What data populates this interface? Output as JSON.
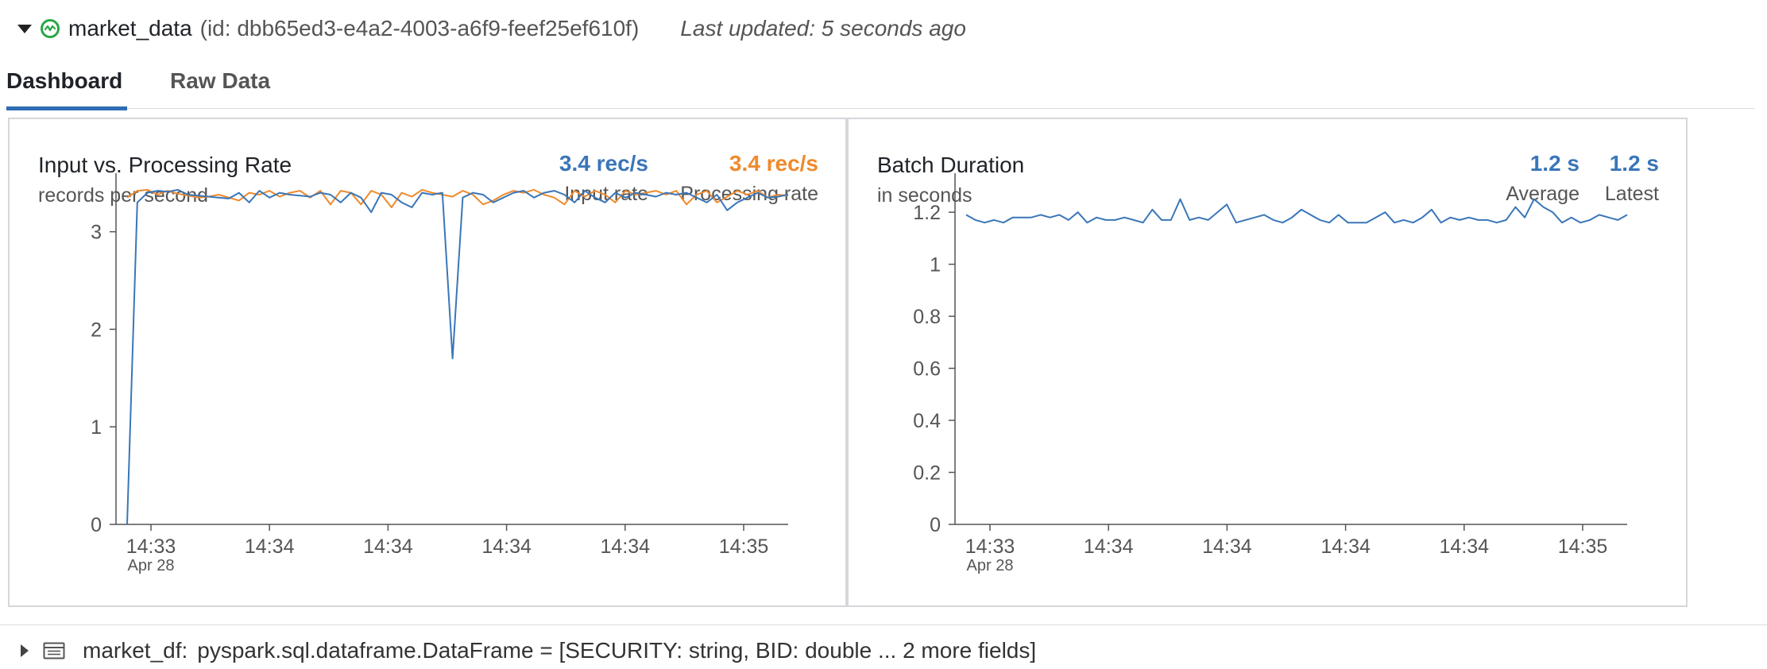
{
  "header": {
    "stream_name": "market_data",
    "stream_id": "(id: dbb65ed3-e4a2-4003-a6f9-feef25ef610f)",
    "last_updated": "Last updated: 5 seconds ago"
  },
  "tabs": [
    {
      "label": "Dashboard",
      "active": true
    },
    {
      "label": "Raw Data",
      "active": false
    }
  ],
  "colors": {
    "input": "#3a76b8",
    "processing": "#ef8a2d",
    "status": "#28a745"
  },
  "panels": {
    "rate": {
      "title": "Input vs. Processing Rate",
      "subtitle": "records per second",
      "metrics": [
        {
          "value": "3.4 rec/s",
          "label": "Input rate"
        },
        {
          "value": "3.4 rec/s",
          "label": "Processing rate"
        }
      ]
    },
    "duration": {
      "title": "Batch Duration",
      "subtitle": "in seconds",
      "metrics": [
        {
          "value": "1.2 s",
          "label": "Average"
        },
        {
          "value": "1.2 s",
          "label": "Latest"
        }
      ]
    }
  },
  "chart_data": [
    {
      "type": "line",
      "title": "Input vs. Processing Rate",
      "subtitle": "records per second",
      "x_tick_labels": [
        "14:33",
        "14:34",
        "14:34",
        "14:34",
        "14:34",
        "14:35"
      ],
      "x_sub_label": "Apr 28",
      "y_ticks": [
        "0",
        "1",
        "2",
        "3"
      ],
      "ylim": [
        0,
        3.6
      ],
      "series": [
        {
          "name": "Input rate",
          "color": "#3a76b8",
          "values": [
            0,
            3.3,
            3.4,
            3.42,
            3.41,
            3.43,
            3.38,
            3.37,
            3.36,
            3.35,
            3.34,
            3.4,
            3.3,
            3.42,
            3.35,
            3.4,
            3.38,
            3.37,
            3.36,
            3.4,
            3.38,
            3.3,
            3.4,
            3.35,
            3.2,
            3.4,
            3.38,
            3.3,
            3.25,
            3.4,
            3.38,
            3.4,
            1.7,
            3.35,
            3.4,
            3.38,
            3.3,
            3.35,
            3.4,
            3.42,
            3.35,
            3.4,
            3.42,
            3.38,
            3.3,
            3.42,
            3.35,
            3.3,
            3.4,
            3.35,
            3.4,
            3.38,
            3.36,
            3.4,
            3.38,
            3.4,
            3.35,
            3.3,
            3.38,
            3.22,
            3.3,
            3.35,
            3.4,
            3.35,
            3.36,
            3.38
          ]
        },
        {
          "name": "Processing rate",
          "color": "#ef8a2d",
          "values": [
            3.35,
            3.42,
            3.43,
            3.38,
            3.42,
            3.39,
            3.37,
            3.35,
            3.36,
            3.38,
            3.35,
            3.32,
            3.4,
            3.38,
            3.42,
            3.36,
            3.4,
            3.42,
            3.35,
            3.42,
            3.28,
            3.42,
            3.4,
            3.28,
            3.42,
            3.38,
            3.25,
            3.4,
            3.36,
            3.43,
            3.4,
            3.38,
            3.36,
            3.42,
            3.38,
            3.28,
            3.32,
            3.38,
            3.42,
            3.4,
            3.43,
            3.38,
            3.35,
            3.28,
            3.42,
            3.36,
            3.42,
            3.38,
            3.3,
            3.42,
            3.38,
            3.4,
            3.42,
            3.38,
            3.42,
            3.28,
            3.38,
            3.42,
            3.3,
            3.36,
            3.42,
            3.38,
            3.42,
            3.35,
            3.38,
            3.37
          ]
        }
      ]
    },
    {
      "type": "line",
      "title": "Batch Duration",
      "subtitle": "in seconds",
      "x_tick_labels": [
        "14:33",
        "14:34",
        "14:34",
        "14:34",
        "14:34",
        "14:35"
      ],
      "x_sub_label": "Apr 28",
      "y_ticks": [
        "0",
        "0.2",
        "0.4",
        "0.6",
        "0.8",
        "1",
        "1.2"
      ],
      "ylim": [
        0,
        1.35
      ],
      "series": [
        {
          "name": "Batch Duration",
          "color": "#3a76b8",
          "values": [
            1.19,
            1.17,
            1.16,
            1.17,
            1.16,
            1.18,
            1.18,
            1.18,
            1.19,
            1.18,
            1.19,
            1.17,
            1.2,
            1.16,
            1.18,
            1.17,
            1.17,
            1.18,
            1.17,
            1.16,
            1.21,
            1.17,
            1.17,
            1.25,
            1.17,
            1.18,
            1.17,
            1.2,
            1.23,
            1.16,
            1.17,
            1.18,
            1.19,
            1.17,
            1.16,
            1.18,
            1.21,
            1.19,
            1.17,
            1.16,
            1.19,
            1.16,
            1.16,
            1.16,
            1.18,
            1.2,
            1.16,
            1.17,
            1.16,
            1.18,
            1.21,
            1.16,
            1.18,
            1.17,
            1.18,
            1.17,
            1.17,
            1.16,
            1.17,
            1.22,
            1.18,
            1.25,
            1.22,
            1.2,
            1.16,
            1.18,
            1.16,
            1.17,
            1.19,
            1.18,
            1.17,
            1.19
          ]
        }
      ]
    }
  ],
  "footer": {
    "var_name": "market_df:",
    "type_text": "pyspark.sql.dataframe.DataFrame = [SECURITY: string, BID: double ... 2 more fields]"
  }
}
